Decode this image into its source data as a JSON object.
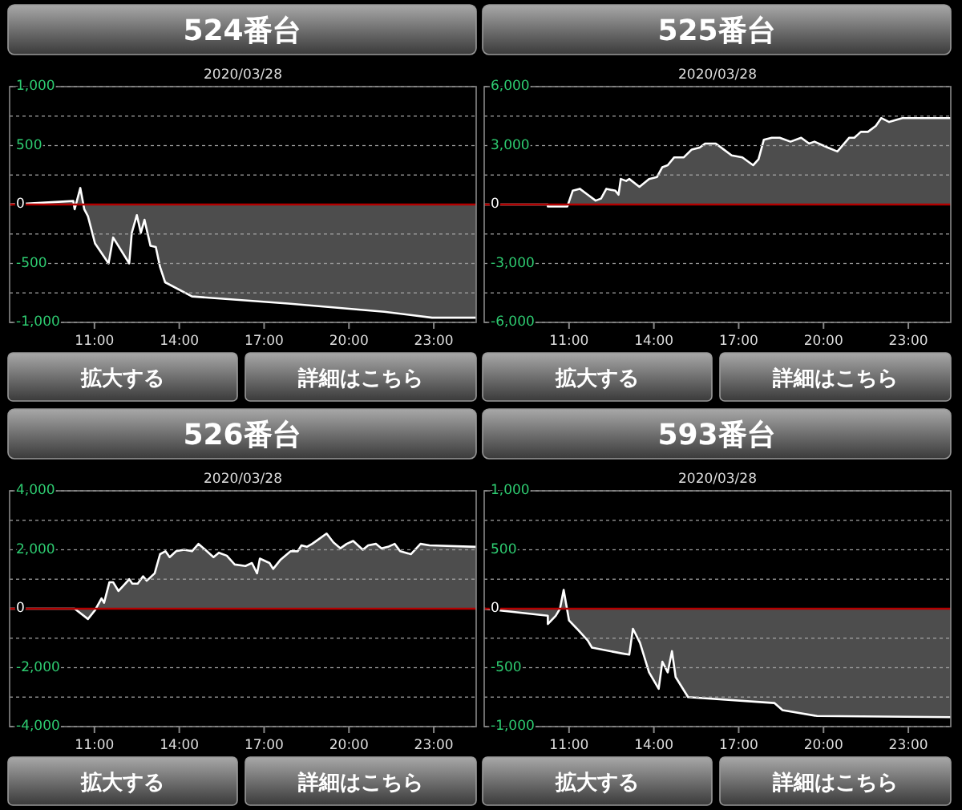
{
  "chart_data": [
    {
      "type": "area",
      "title": "524番台",
      "subtitle": "2020/03/28",
      "annotations": [
        "拡大する",
        "詳細はこちら"
      ],
      "grid": "y",
      "xlim": [
        8,
        24.5
      ],
      "xticks": [
        {
          "value": 11,
          "label": "11:00"
        },
        {
          "value": 14,
          "label": "14:00"
        },
        {
          "value": 17,
          "label": "17:00"
        },
        {
          "value": 20,
          "label": "20:00"
        },
        {
          "value": 23,
          "label": "23:00"
        }
      ],
      "ylim": [
        -1000,
        1000
      ],
      "yticks": [
        {
          "value": -1000,
          "label": "-1,000"
        },
        {
          "value": -750,
          "label": null
        },
        {
          "value": -500,
          "label": "-500"
        },
        {
          "value": -250,
          "label": null
        },
        {
          "value": 0,
          "label": "0"
        },
        {
          "value": 250,
          "label": null
        },
        {
          "value": 500,
          "label": "500"
        },
        {
          "value": 750,
          "label": null
        },
        {
          "value": 1000,
          "label": "1,000"
        }
      ],
      "ref_lines": [
        {
          "axis": "y",
          "value": 0,
          "color": "#b40000"
        }
      ],
      "series": [
        {
          "color": "#ffffff",
          "x": [
            8,
            10.25,
            10.3,
            10.5,
            10.64,
            10.77,
            11.02,
            11.5,
            11.66,
            12.23,
            12.32,
            12.5,
            12.64,
            12.77,
            12.98,
            13.17,
            13.32,
            13.5,
            14.45,
            17.85,
            21.25,
            22.94,
            24.5
          ],
          "values": [
            0,
            30,
            -40,
            140,
            -40,
            -100,
            -330,
            -500,
            -280,
            -500,
            -240,
            -90,
            -240,
            -130,
            -350,
            -360,
            -530,
            -660,
            -780,
            -840,
            -910,
            -960,
            -960
          ]
        }
      ]
    },
    {
      "type": "area",
      "title": "525番台",
      "subtitle": "2020/03/28",
      "annotations": [
        "拡大する",
        "詳細はこちら"
      ],
      "grid": "y",
      "xlim": [
        8,
        24.5
      ],
      "xticks": [
        {
          "value": 11,
          "label": "11:00"
        },
        {
          "value": 14,
          "label": "14:00"
        },
        {
          "value": 17,
          "label": "17:00"
        },
        {
          "value": 20,
          "label": "20:00"
        },
        {
          "value": 23,
          "label": "23:00"
        }
      ],
      "ylim": [
        -6000,
        6000
      ],
      "yticks": [
        {
          "value": -6000,
          "label": "-6,000"
        },
        {
          "value": -4500,
          "label": null
        },
        {
          "value": -3000,
          "label": "-3,000"
        },
        {
          "value": -1500,
          "label": null
        },
        {
          "value": 0,
          "label": "0"
        },
        {
          "value": 1500,
          "label": null
        },
        {
          "value": 3000,
          "label": "3,000"
        },
        {
          "value": 4500,
          "label": null
        },
        {
          "value": 6000,
          "label": "6,000"
        }
      ],
      "ref_lines": [
        {
          "axis": "y",
          "value": 0,
          "color": "#b40000"
        }
      ],
      "series": [
        {
          "color": "#ffffff",
          "x": [
            8,
            10.25,
            10.25,
            10.94,
            11.13,
            11.38,
            11.66,
            11.94,
            12.13,
            12.32,
            12.64,
            12.75,
            12.83,
            13.02,
            13.13,
            13.49,
            13.83,
            14.11,
            14.3,
            14.49,
            14.72,
            15.06,
            15.34,
            15.62,
            15.81,
            16.19,
            16.47,
            16.75,
            17.13,
            17.51,
            17.7,
            17.89,
            18.17,
            18.45,
            18.83,
            19.21,
            19.49,
            19.68,
            20.15,
            20.49,
            20.91,
            21.09,
            21.32,
            21.57,
            21.85,
            22.04,
            22.32,
            22.79,
            24.5
          ],
          "values": [
            0,
            0,
            -100,
            -100,
            700,
            800,
            500,
            200,
            300,
            800,
            700,
            500,
            1300,
            1200,
            1300,
            900,
            1300,
            1400,
            1900,
            2000,
            2400,
            2400,
            2800,
            2900,
            3100,
            3100,
            2800,
            2500,
            2400,
            2000,
            2300,
            3300,
            3400,
            3400,
            3200,
            3400,
            3100,
            3200,
            2900,
            2700,
            3400,
            3400,
            3700,
            3700,
            4000,
            4400,
            4200,
            4400,
            4400
          ]
        }
      ]
    },
    {
      "type": "area",
      "title": "526番台",
      "subtitle": "2020/03/28",
      "annotations": [
        "拡大する",
        "詳細はこちら"
      ],
      "grid": "y",
      "xlim": [
        8,
        24.5
      ],
      "xticks": [
        {
          "value": 11,
          "label": "11:00"
        },
        {
          "value": 14,
          "label": "14:00"
        },
        {
          "value": 17,
          "label": "17:00"
        },
        {
          "value": 20,
          "label": "20:00"
        },
        {
          "value": 23,
          "label": "23:00"
        }
      ],
      "ylim": [
        -4000,
        4000
      ],
      "yticks": [
        {
          "value": -4000,
          "label": "-4,000"
        },
        {
          "value": -3000,
          "label": null
        },
        {
          "value": -2000,
          "label": "-2,000"
        },
        {
          "value": -1000,
          "label": null
        },
        {
          "value": 0,
          "label": "0"
        },
        {
          "value": 1000,
          "label": null
        },
        {
          "value": 2000,
          "label": "2,000"
        },
        {
          "value": 3000,
          "label": null
        },
        {
          "value": 4000,
          "label": "4,000"
        }
      ],
      "ref_lines": [
        {
          "axis": "y",
          "value": 0,
          "color": "#b40000"
        }
      ],
      "series": [
        {
          "color": "#ffffff",
          "x": [
            8,
            10.3,
            10.77,
            11.02,
            11.25,
            11.34,
            11.53,
            11.66,
            11.85,
            12.04,
            12.23,
            12.34,
            12.53,
            12.72,
            12.85,
            13.13,
            13.32,
            13.51,
            13.66,
            13.89,
            14.17,
            14.45,
            14.68,
            14.92,
            15.21,
            15.4,
            15.68,
            15.96,
            16.34,
            16.57,
            16.75,
            16.85,
            17.19,
            17.32,
            17.57,
            17.94,
            18.19,
            18.32,
            18.51,
            18.7,
            18.92,
            19.21,
            19.45,
            19.7,
            19.92,
            20.15,
            20.49,
            20.68,
            20.96,
            21.15,
            21.38,
            21.62,
            21.81,
            22.19,
            22.53,
            22.85,
            24.5
          ],
          "values": [
            0,
            0,
            -350,
            -50,
            350,
            200,
            900,
            900,
            600,
            800,
            1000,
            850,
            850,
            1100,
            950,
            1200,
            1850,
            1950,
            1750,
            1950,
            2000,
            1950,
            2200,
            2000,
            1750,
            1900,
            1800,
            1500,
            1450,
            1550,
            1200,
            1700,
            1550,
            1350,
            1650,
            1950,
            1950,
            2150,
            2100,
            2200,
            2350,
            2550,
            2250,
            2050,
            2200,
            2300,
            2000,
            2150,
            2200,
            2050,
            2100,
            2200,
            1950,
            1850,
            2200,
            2150,
            2100
          ]
        }
      ]
    },
    {
      "type": "area",
      "title": "593番台",
      "subtitle": "2020/03/28",
      "annotations": [
        "拡大する",
        "詳細はこちら"
      ],
      "grid": "y",
      "xlim": [
        8,
        24.5
      ],
      "xticks": [
        {
          "value": 11,
          "label": "11:00"
        },
        {
          "value": 14,
          "label": "14:00"
        },
        {
          "value": 17,
          "label": "17:00"
        },
        {
          "value": 20,
          "label": "20:00"
        },
        {
          "value": 23,
          "label": "23:00"
        }
      ],
      "ylim": [
        -1000,
        1000
      ],
      "yticks": [
        {
          "value": -1000,
          "label": "-1,000"
        },
        {
          "value": -750,
          "label": null
        },
        {
          "value": -500,
          "label": "-500"
        },
        {
          "value": -250,
          "label": null
        },
        {
          "value": 0,
          "label": "0"
        },
        {
          "value": 250,
          "label": null
        },
        {
          "value": 500,
          "label": "500"
        },
        {
          "value": 750,
          "label": null
        },
        {
          "value": 1000,
          "label": "1,000"
        }
      ],
      "ref_lines": [
        {
          "axis": "y",
          "value": 0,
          "color": "#b40000"
        }
      ],
      "series": [
        {
          "color": "#ffffff",
          "x": [
            8,
            10.25,
            10.25,
            10.53,
            10.68,
            10.81,
            11,
            11.28,
            11.66,
            11.81,
            12.89,
            13.13,
            13.26,
            13.51,
            13.83,
            14.17,
            14.3,
            14.49,
            14.64,
            14.77,
            15.21,
            18.26,
            18.55,
            19.77,
            24.5
          ],
          "values": [
            0,
            -60,
            -130,
            -60,
            0,
            160,
            -100,
            -170,
            -270,
            -330,
            -380,
            -390,
            -170,
            -290,
            -540,
            -680,
            -450,
            -540,
            -360,
            -580,
            -750,
            -800,
            -860,
            -910,
            -920
          ]
        }
      ]
    }
  ]
}
